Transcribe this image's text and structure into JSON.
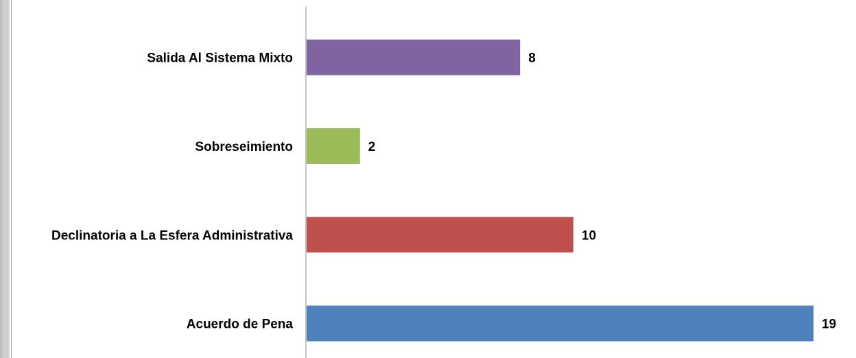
{
  "chart_data": {
    "type": "bar",
    "orientation": "horizontal",
    "categories": [
      "Salida Al Sistema Mixto",
      "Sobreseimiento",
      "Declinatoria a La Esfera Administrativa",
      "Acuerdo de Pena"
    ],
    "values": [
      8,
      2,
      10,
      19
    ],
    "colors": [
      "#8064A2",
      "#9BBB59",
      "#C0504D",
      "#4F81BD"
    ],
    "data_labels": [
      "8",
      "2",
      "10",
      "19"
    ],
    "xlim": [
      0,
      20
    ],
    "grid": false,
    "legend": "none",
    "title": "",
    "xlabel": "",
    "ylabel": ""
  }
}
